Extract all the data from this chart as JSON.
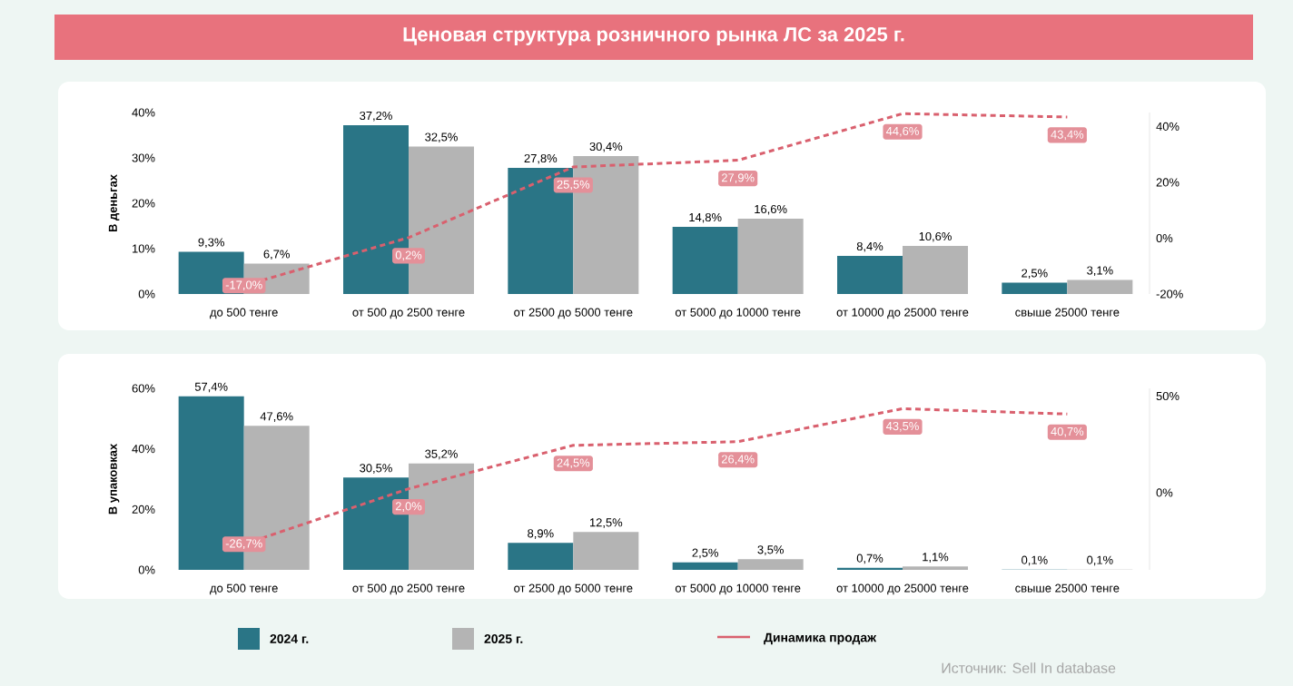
{
  "chart_data": [
    {
      "type": "bar",
      "title": "Ценовая структура розничного рынка ЛС за 2025 г.",
      "ylabel": "В деньгах",
      "legend": "bottom",
      "categories": [
        "до 500 тенге",
        "от 500 до 2500 тенге",
        "от 2500 до 5000 тенге",
        "от 5000 до 10000 тенге",
        "от 10000 до 25000 тенге",
        "свыше 25000 тенге"
      ],
      "series": [
        {
          "name": "2024 г.",
          "color": "#2a7586",
          "values": [
            9.3,
            37.2,
            27.8,
            14.8,
            8.4,
            2.5
          ],
          "value_labels": [
            "9,3%",
            "37,2%",
            "27,8%",
            "14,8%",
            "8,4%",
            "2,5%"
          ]
        },
        {
          "name": "2025 г.",
          "color": "#b4b4b4",
          "values": [
            6.7,
            32.5,
            30.4,
            16.6,
            10.6,
            3.1
          ],
          "value_labels": [
            "6,7%",
            "32,5%",
            "30,4%",
            "16,6%",
            "10,6%",
            "3,1%"
          ]
        },
        {
          "name": "Динамика продаж",
          "type": "line",
          "axis": "y2",
          "line_style": "dashed",
          "marker": "none",
          "color": "#d9606e",
          "values": [
            -17.0,
            0.2,
            25.5,
            27.9,
            44.6,
            43.4
          ],
          "value_labels": [
            "-17,0%",
            "0,2%",
            "25,5%",
            "27,9%",
            "44,6%",
            "43,4%"
          ]
        }
      ],
      "ylim": [
        0,
        40
      ],
      "yticks": [
        {
          "value": 0,
          "label": "0%"
        },
        {
          "value": 10,
          "label": "10%"
        },
        {
          "value": 20,
          "label": "20%"
        },
        {
          "value": 30,
          "label": "30%"
        },
        {
          "value": 40,
          "label": "40%"
        }
      ],
      "y2lim": [
        -20,
        45
      ],
      "y2ticks": [
        {
          "value": -20,
          "label": "-20%"
        },
        {
          "value": 0,
          "label": "0%"
        },
        {
          "value": 20,
          "label": "20%"
        },
        {
          "value": 40,
          "label": "40%"
        }
      ]
    },
    {
      "type": "bar",
      "ylabel": "В упаковках",
      "annotations": [
        "Источник: Sell In database"
      ],
      "categories": [
        "до 500 тенге",
        "от 500 до 2500 тенге",
        "от 2500 до 5000 тенге",
        "от 5000 до 10000 тенге",
        "от 10000 до 25000 тенге",
        "свыше 25000 тенге"
      ],
      "series": [
        {
          "color": "#2a7586",
          "values": [
            57.4,
            30.5,
            8.9,
            2.5,
            0.7,
            0.1
          ],
          "value_labels": [
            "57,4%",
            "30,5%",
            "8,9%",
            "2,5%",
            "0,7%",
            "0,1%"
          ]
        },
        {
          "color": "#b4b4b4",
          "values": [
            47.6,
            35.2,
            12.5,
            3.5,
            1.1,
            0.1
          ],
          "value_labels": [
            "47,6%",
            "35,2%",
            "12,5%",
            "3,5%",
            "1,1%",
            "0,1%"
          ]
        },
        {
          "type": "line",
          "axis": "y2",
          "line_style": "dashed",
          "marker": "none",
          "color": "#d9606e",
          "values": [
            -26.7,
            2.0,
            24.5,
            26.4,
            43.5,
            40.7
          ],
          "value_labels": [
            "-26,7%",
            "2,0%",
            "24,5%",
            "26,4%",
            "43,5%",
            "40,7%"
          ]
        }
      ],
      "ylim": [
        0,
        60
      ],
      "yticks": [
        {
          "value": 0,
          "label": "0%"
        },
        {
          "value": 20,
          "label": "20%"
        },
        {
          "value": 40,
          "label": "40%"
        },
        {
          "value": 60,
          "label": "60%"
        }
      ],
      "y2lim": [
        -40,
        54
      ],
      "y2ticks": [
        {
          "value": 0,
          "label": "0%"
        },
        {
          "value": 50,
          "label": "50%"
        }
      ]
    }
  ]
}
